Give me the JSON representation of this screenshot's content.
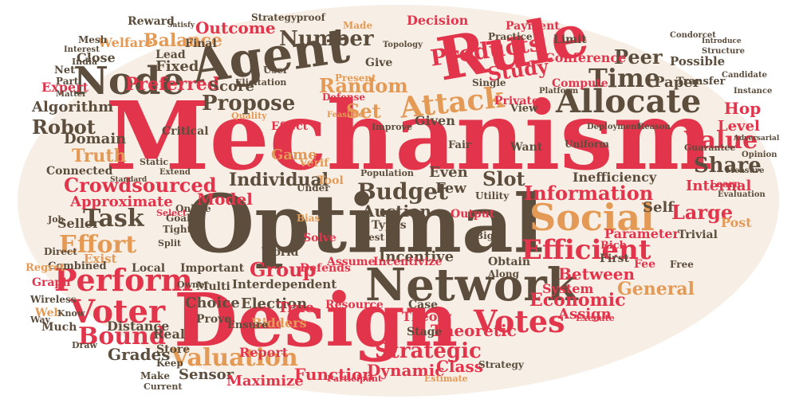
{
  "colors": {
    "red": "#e2354b",
    "brown": "#5c4d3c",
    "orange": "#e49a55"
  },
  "words": [
    {
      "text": "Mechanism",
      "color": "red"
    },
    {
      "text": "Optimal",
      "color": "brown"
    },
    {
      "text": "Design",
      "color": "red"
    },
    {
      "text": "Network",
      "color": "brown"
    },
    {
      "text": "Agent",
      "color": "brown"
    },
    {
      "text": "Rule",
      "color": "red"
    },
    {
      "text": "Node",
      "color": "brown"
    },
    {
      "text": "Social",
      "color": "orange"
    },
    {
      "text": "Allocate",
      "color": "brown"
    },
    {
      "text": "Attack",
      "color": "orange"
    },
    {
      "text": "Voter",
      "color": "red"
    },
    {
      "text": "Perform",
      "color": "red"
    },
    {
      "text": "Votes",
      "color": "red"
    },
    {
      "text": "Efficient",
      "color": "red"
    },
    {
      "text": "Budget",
      "color": "brown"
    },
    {
      "text": "Information",
      "color": "red"
    },
    {
      "text": "Valuation",
      "color": "orange"
    },
    {
      "text": "Value",
      "color": "red"
    },
    {
      "text": "Time",
      "color": "brown"
    },
    {
      "text": "Propose",
      "color": "brown"
    },
    {
      "text": "Task",
      "color": "brown"
    },
    {
      "text": "Effort",
      "color": "orange"
    },
    {
      "text": "Crowdsourced",
      "color": "red"
    },
    {
      "text": "Bound",
      "color": "red"
    },
    {
      "text": "Robot",
      "color": "brown"
    },
    {
      "text": "Algorithm",
      "color": "brown"
    },
    {
      "text": "Truth",
      "color": "orange"
    },
    {
      "text": "Random",
      "color": "orange"
    },
    {
      "text": "Number",
      "color": "brown"
    },
    {
      "text": "Share",
      "color": "brown"
    },
    {
      "text": "Group",
      "color": "red"
    },
    {
      "text": "Incentive",
      "color": "brown"
    },
    {
      "text": "Individual",
      "color": "brown"
    },
    {
      "text": "Slot",
      "color": "brown"
    },
    {
      "text": "Auction",
      "color": "brown"
    },
    {
      "text": "Strategic",
      "color": "red"
    },
    {
      "text": "Theoretic",
      "color": "red"
    },
    {
      "text": "Grades",
      "color": "brown"
    },
    {
      "text": "Sensor",
      "color": "brown"
    },
    {
      "text": "Large",
      "color": "red"
    },
    {
      "text": "Products",
      "color": "red"
    },
    {
      "text": "Study",
      "color": "red"
    },
    {
      "text": "Peer",
      "color": "brown"
    },
    {
      "text": "Balance",
      "color": "orange"
    },
    {
      "text": "Preferred",
      "color": "red"
    },
    {
      "text": "Fixed",
      "color": "brown"
    },
    {
      "text": "Outcome",
      "color": "red"
    },
    {
      "text": "Reward",
      "color": "brown"
    },
    {
      "text": "Welfare",
      "color": "orange"
    },
    {
      "text": "Close",
      "color": "brown"
    },
    {
      "text": "Score",
      "color": "brown"
    },
    {
      "text": "Domain",
      "color": "brown"
    },
    {
      "text": "Approximate",
      "color": "red"
    },
    {
      "text": "Seller",
      "color": "brown"
    },
    {
      "text": "Model",
      "color": "red"
    },
    {
      "text": "Set",
      "color": "orange"
    },
    {
      "text": "Game",
      "color": "orange"
    },
    {
      "text": "Interdependent",
      "color": "brown"
    },
    {
      "text": "Election",
      "color": "brown"
    },
    {
      "text": "Choice",
      "color": "brown"
    },
    {
      "text": "Economic",
      "color": "red"
    },
    {
      "text": "Between",
      "color": "red"
    },
    {
      "text": "General",
      "color": "orange"
    },
    {
      "text": "Assign",
      "color": "red"
    },
    {
      "text": "Function",
      "color": "red"
    },
    {
      "text": "Dynamic",
      "color": "red"
    },
    {
      "text": "Class",
      "color": "red"
    },
    {
      "text": "Distance",
      "color": "brown"
    },
    {
      "text": "Report",
      "color": "red"
    },
    {
      "text": "Maximize",
      "color": "red"
    },
    {
      "text": "Internal",
      "color": "red"
    },
    {
      "text": "Level",
      "color": "red"
    },
    {
      "text": "Hop",
      "color": "red"
    },
    {
      "text": "Post",
      "color": "orange"
    },
    {
      "text": "Conference",
      "color": "red"
    },
    {
      "text": "Paper",
      "color": "brown"
    },
    {
      "text": "Possible",
      "color": "brown"
    },
    {
      "text": "Limit",
      "color": "brown"
    },
    {
      "text": "Inefficiency",
      "color": "brown"
    },
    {
      "text": "Self",
      "color": "brown"
    },
    {
      "text": "System",
      "color": "red"
    },
    {
      "text": "Bidders",
      "color": "orange"
    },
    {
      "text": "Expert",
      "color": "red"
    },
    {
      "text": "Connected",
      "color": "brown"
    },
    {
      "text": "Exist",
      "color": "orange"
    },
    {
      "text": "Combined",
      "color": "brown"
    },
    {
      "text": "Graph",
      "color": "red"
    },
    {
      "text": "Web",
      "color": "orange"
    },
    {
      "text": "Much",
      "color": "brown"
    },
    {
      "text": "Regret",
      "color": "orange"
    },
    {
      "text": "Real",
      "color": "brown"
    },
    {
      "text": "Store",
      "color": "brown"
    },
    {
      "text": "Prove",
      "color": "brown"
    },
    {
      "text": "Multi",
      "color": "brown"
    },
    {
      "text": "Ensure",
      "color": "brown"
    },
    {
      "text": "Stage",
      "color": "brown"
    },
    {
      "text": "Theory",
      "color": "red"
    },
    {
      "text": "Case",
      "color": "brown"
    },
    {
      "text": "Resource",
      "color": "red"
    },
    {
      "text": "Assume",
      "color": "red"
    },
    {
      "text": "Incentivize",
      "color": "red"
    },
    {
      "text": "Defends",
      "color": "red"
    },
    {
      "text": "World",
      "color": "brown"
    },
    {
      "text": "Solve",
      "color": "red"
    },
    {
      "text": "Types",
      "color": "brown"
    },
    {
      "text": "Even",
      "color": "brown"
    },
    {
      "text": "Few",
      "color": "brown"
    },
    {
      "text": "Fair",
      "color": "brown"
    },
    {
      "text": "Given",
      "color": "brown"
    },
    {
      "text": "Effect",
      "color": "red"
    },
    {
      "text": "Critical",
      "color": "brown"
    },
    {
      "text": "Verif",
      "color": "orange"
    },
    {
      "text": "Important",
      "color": "brown"
    },
    {
      "text": "Local",
      "color": "brown"
    },
    {
      "text": "Online",
      "color": "brown"
    },
    {
      "text": "Tool",
      "color": "orange"
    },
    {
      "text": "Under",
      "color": "brown"
    },
    {
      "text": "Bias",
      "color": "orange"
    },
    {
      "text": "Output",
      "color": "red"
    },
    {
      "text": "Obtain",
      "color": "brown"
    },
    {
      "text": "Along",
      "color": "brown"
    },
    {
      "text": "Parameter",
      "color": "red"
    },
    {
      "text": "Rich",
      "color": "red"
    },
    {
      "text": "Fee",
      "color": "red"
    },
    {
      "text": "Trivial",
      "color": "brown"
    },
    {
      "text": "First",
      "color": "brown"
    },
    {
      "text": "Free",
      "color": "brown"
    },
    {
      "text": "Decision",
      "color": "red"
    },
    {
      "text": "Practice",
      "color": "brown"
    },
    {
      "text": "Payment",
      "color": "red"
    },
    {
      "text": "Compute",
      "color": "red"
    },
    {
      "text": "Made",
      "color": "orange"
    },
    {
      "text": "True",
      "color": "red"
    },
    {
      "text": "Mesh",
      "color": "brown"
    },
    {
      "text": "Net",
      "color": "brown"
    },
    {
      "text": "India",
      "color": "brown"
    },
    {
      "text": "Part",
      "color": "brown"
    },
    {
      "text": "Lead",
      "color": "brown"
    },
    {
      "text": "Give",
      "color": "brown"
    },
    {
      "text": "Final",
      "color": "brown"
    },
    {
      "text": "Elicitation",
      "color": "brown"
    },
    {
      "text": "User",
      "color": "brown"
    },
    {
      "text": "Topology",
      "color": "brown"
    },
    {
      "text": "Strategyproof",
      "color": "brown"
    },
    {
      "text": "Present",
      "color": "orange"
    },
    {
      "text": "Defense",
      "color": "red"
    },
    {
      "text": "View",
      "color": "brown"
    },
    {
      "text": "Private",
      "color": "red"
    },
    {
      "text": "Want",
      "color": "brown"
    },
    {
      "text": "Uniform",
      "color": "brown"
    },
    {
      "text": "Platform",
      "color": "brown"
    },
    {
      "text": "Single",
      "color": "brown"
    },
    {
      "text": "Improve",
      "color": "brown"
    },
    {
      "text": "Population",
      "color": "brown"
    },
    {
      "text": "Best",
      "color": "brown"
    },
    {
      "text": "Big",
      "color": "brown"
    },
    {
      "text": "Utility",
      "color": "brown"
    },
    {
      "text": "Goal",
      "color": "brown"
    },
    {
      "text": "Tight",
      "color": "brown"
    },
    {
      "text": "Learn",
      "color": "red"
    },
    {
      "text": "Transfer",
      "color": "brown"
    },
    {
      "text": "Guarantee",
      "color": "brown"
    },
    {
      "text": "Keep",
      "color": "brown"
    },
    {
      "text": "Owner",
      "color": "brown"
    },
    {
      "text": "Wireless",
      "color": "brown"
    },
    {
      "text": "Direct",
      "color": "brown"
    },
    {
      "text": "Job",
      "color": "brown"
    },
    {
      "text": "Way",
      "color": "brown"
    },
    {
      "text": "Know",
      "color": "brown"
    },
    {
      "text": "Draw",
      "color": "brown"
    },
    {
      "text": "Make",
      "color": "brown"
    },
    {
      "text": "Current",
      "color": "brown"
    },
    {
      "text": "Participant",
      "color": "red"
    },
    {
      "text": "Estimate",
      "color": "orange"
    },
    {
      "text": "Strategy",
      "color": "brown"
    },
    {
      "text": "Execute",
      "color": "red"
    },
    {
      "text": "Interest",
      "color": "brown"
    },
    {
      "text": "Matter",
      "color": "brown"
    },
    {
      "text": "Feasible",
      "color": "orange"
    },
    {
      "text": "Split",
      "color": "brown"
    },
    {
      "text": "Select",
      "color": "red"
    },
    {
      "text": "Static",
      "color": "brown"
    },
    {
      "text": "Extend",
      "color": "brown"
    },
    {
      "text": "Quality",
      "color": "orange"
    },
    {
      "text": "Instance",
      "color": "brown"
    },
    {
      "text": "Condorcet",
      "color": "brown"
    },
    {
      "text": "Structure",
      "color": "brown"
    },
    {
      "text": "Candidate",
      "color": "brown"
    },
    {
      "text": "Reason",
      "color": "brown"
    },
    {
      "text": "Opinion",
      "color": "brown"
    },
    {
      "text": "Measure",
      "color": "brown"
    },
    {
      "text": "Deployment",
      "color": "brown"
    },
    {
      "text": "Evaluation",
      "color": "brown"
    },
    {
      "text": "Adversarial",
      "color": "brown"
    },
    {
      "text": "Introduce",
      "color": "brown"
    },
    {
      "text": "Satisfy",
      "color": "brown"
    },
    {
      "text": "Standard",
      "color": "brown"
    }
  ]
}
